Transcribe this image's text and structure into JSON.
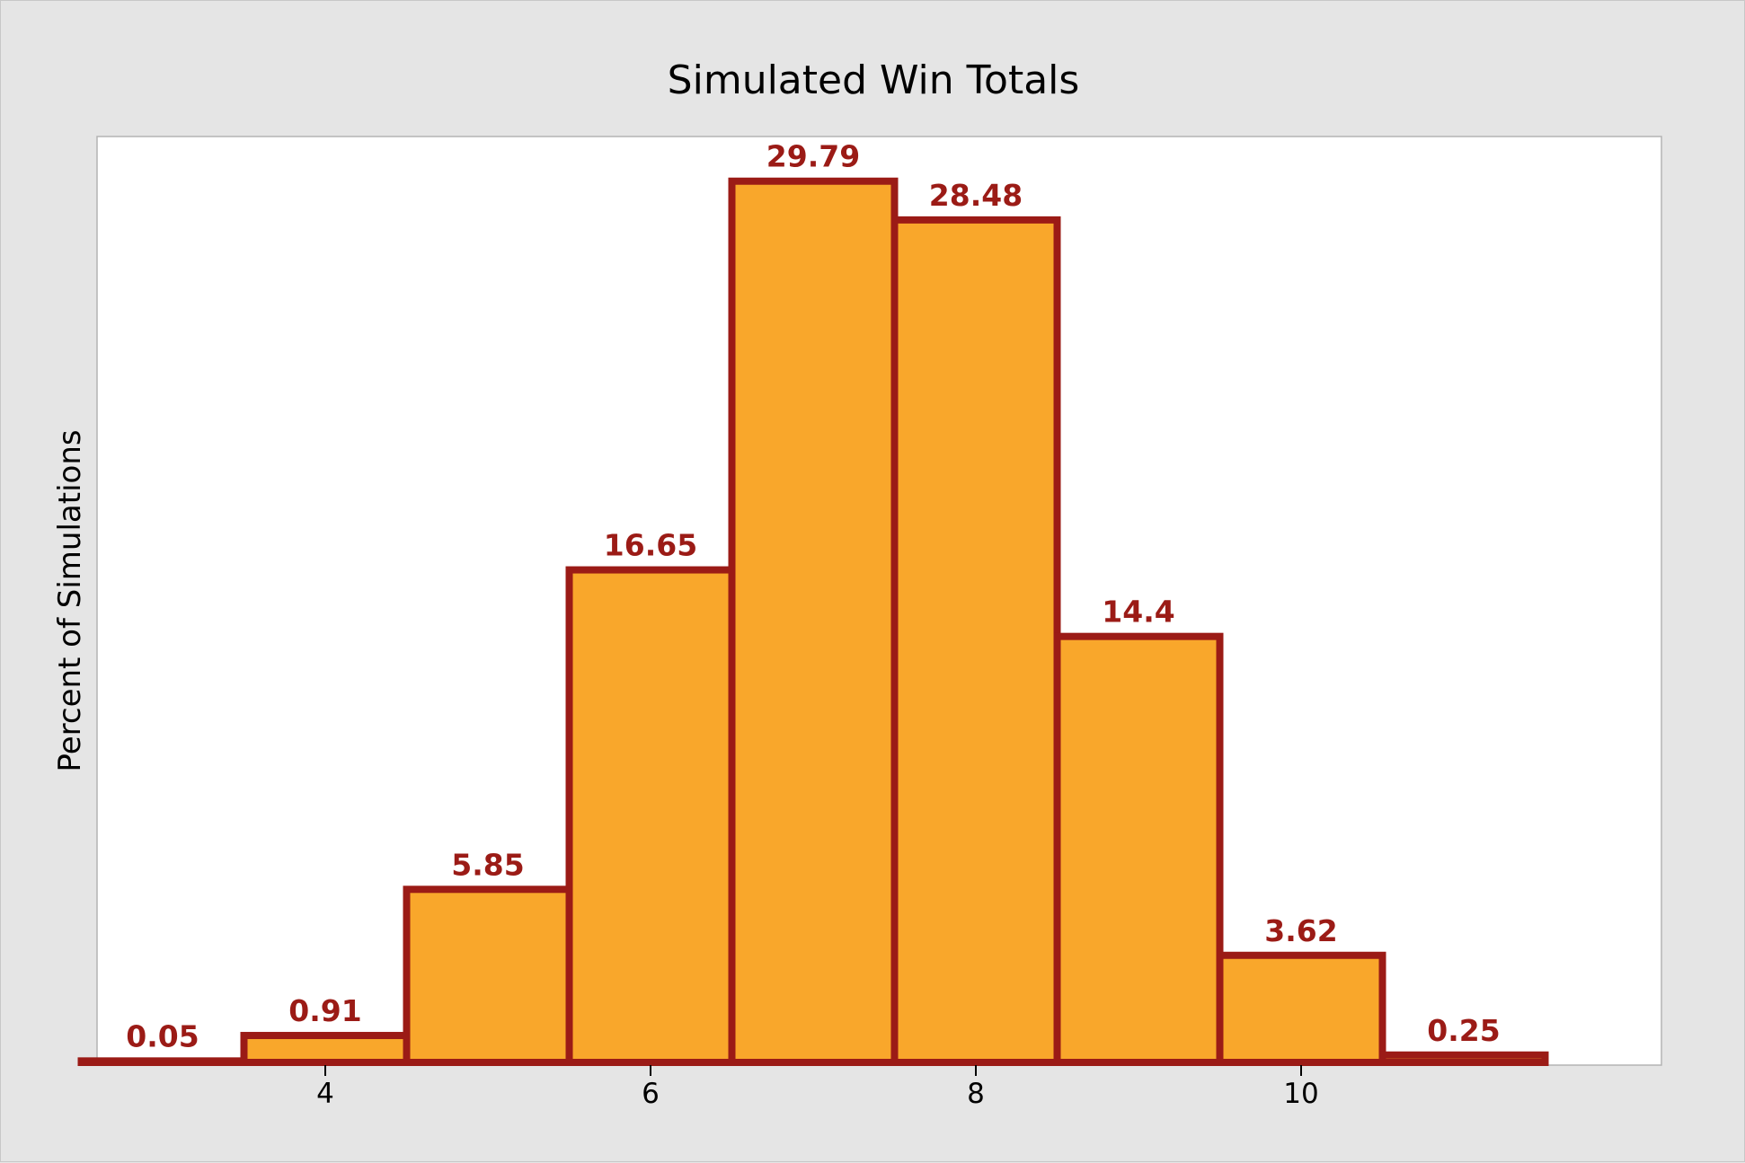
{
  "chart_data": {
    "type": "bar",
    "subtype": "histogram",
    "title": "Simulated Win Totals",
    "xlabel": "",
    "ylabel": "Percent of Simulations",
    "categories": [
      3,
      4,
      5,
      6,
      7,
      8,
      9,
      10,
      11
    ],
    "values": [
      0.05,
      0.91,
      5.85,
      16.65,
      29.79,
      28.48,
      14.4,
      3.62,
      0.25
    ],
    "data_labels": [
      "0.05",
      "0.91",
      "5.85",
      "16.65",
      "29.79",
      "28.48",
      "14.4",
      "3.62",
      "0.25"
    ],
    "x_ticks": [
      4,
      6,
      8,
      10
    ],
    "xlim": [
      2.5,
      11.5
    ],
    "ylim": [
      0,
      31.3
    ],
    "y_ticks_shown": false,
    "grid": false,
    "legend": "none",
    "colors": {
      "bar_fill": "#F9A72B",
      "bar_edge": "#9B1B16",
      "data_label": "#9B1B16",
      "plot_background": "#FFFFFF",
      "figure_background": "#E5E5E5"
    }
  }
}
